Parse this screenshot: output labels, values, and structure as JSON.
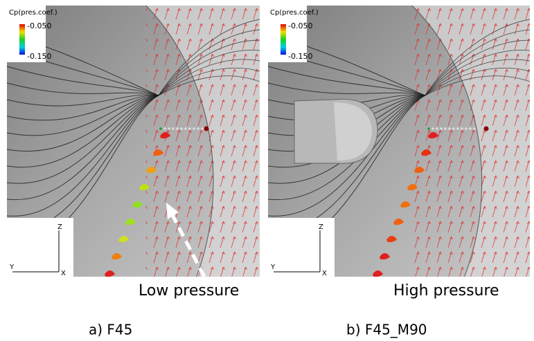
{
  "panels": [
    {
      "legend": {
        "title": "Cp(pres.coef.)",
        "max": "-0.050",
        "min": "-0.150"
      },
      "axes": {
        "z": "Z",
        "y": "Y",
        "x": "X"
      },
      "annotation": "Low pressure",
      "caption": "a) F45"
    },
    {
      "legend": {
        "title": "Cp(pres.coef.)",
        "max": "-0.050",
        "min": "-0.150"
      },
      "axes": {
        "z": "Z",
        "y": "Y",
        "x": "X"
      },
      "annotation": "High pressure",
      "caption": "b) F45_M90"
    }
  ]
}
